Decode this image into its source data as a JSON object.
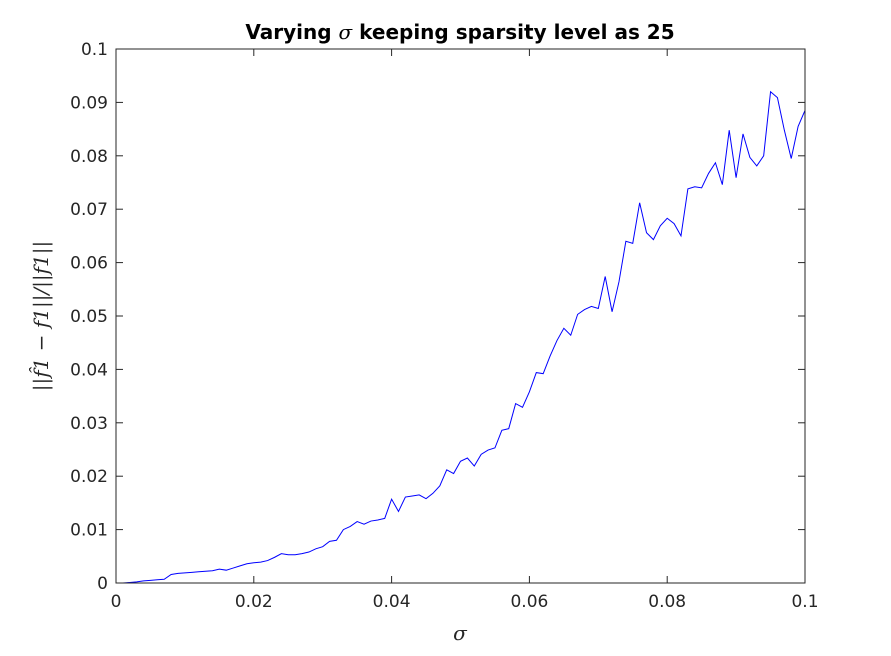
{
  "chart_data": {
    "type": "line",
    "title_parts": [
      "Varying ",
      "σ",
      " keeping sparsity level as 25"
    ],
    "xlabel": "σ",
    "ylabel": "||f̂1 − f1||/||f1||",
    "xlim": [
      0,
      0.1
    ],
    "ylim": [
      0,
      0.1
    ],
    "xticks": [
      0,
      0.02,
      0.04,
      0.06,
      0.08,
      0.1
    ],
    "xtick_labels": [
      "0",
      "0.02",
      "0.04",
      "0.06",
      "0.08",
      "0.1"
    ],
    "yticks": [
      0,
      0.01,
      0.02,
      0.03,
      0.04,
      0.05,
      0.06,
      0.07,
      0.08,
      0.09,
      0.1
    ],
    "ytick_labels": [
      "0",
      "0.01",
      "0.02",
      "0.03",
      "0.04",
      "0.05",
      "0.06",
      "0.07",
      "0.08",
      "0.09",
      "0.1"
    ],
    "grid": false,
    "series": [
      {
        "color": "#0000ff",
        "x": [
          0.001,
          0.002,
          0.003,
          0.004,
          0.005,
          0.006,
          0.007,
          0.008,
          0.009,
          0.01,
          0.011,
          0.012,
          0.013,
          0.014,
          0.015,
          0.016,
          0.017,
          0.018,
          0.019,
          0.02,
          0.021,
          0.022,
          0.023,
          0.024,
          0.025,
          0.026,
          0.027,
          0.028,
          0.029,
          0.03,
          0.031,
          0.032,
          0.033,
          0.034,
          0.035,
          0.036,
          0.037,
          0.038,
          0.039,
          0.04,
          0.041,
          0.042,
          0.043,
          0.044,
          0.045,
          0.046,
          0.047,
          0.048,
          0.049,
          0.05,
          0.051,
          0.052,
          0.053,
          0.054,
          0.055,
          0.056,
          0.057,
          0.058,
          0.059,
          0.06,
          0.061,
          0.062,
          0.063,
          0.064,
          0.065,
          0.066,
          0.067,
          0.068,
          0.069,
          0.07,
          0.071,
          0.072,
          0.073,
          0.074,
          0.075,
          0.076,
          0.077,
          0.078,
          0.079,
          0.08,
          0.081,
          0.082,
          0.083,
          0.084,
          0.085,
          0.086,
          0.087,
          0.088,
          0.089,
          0.09,
          0.091,
          0.092,
          0.093,
          0.094,
          0.095,
          0.096,
          0.097,
          0.098,
          0.099,
          0.1
        ],
        "y": [
          0.0,
          0.0001,
          0.0002,
          0.0004,
          0.0005,
          0.0006,
          0.0007,
          0.0016,
          0.0018,
          0.0019,
          0.002,
          0.0021,
          0.0022,
          0.0023,
          0.0026,
          0.0024,
          0.0028,
          0.0032,
          0.0036,
          0.0038,
          0.0039,
          0.0042,
          0.0048,
          0.0055,
          0.0053,
          0.0053,
          0.0055,
          0.0058,
          0.0064,
          0.0068,
          0.0078,
          0.008,
          0.01,
          0.0106,
          0.0115,
          0.011,
          0.0116,
          0.0118,
          0.0121,
          0.0157,
          0.0134,
          0.0161,
          0.0163,
          0.0165,
          0.0158,
          0.0168,
          0.0182,
          0.0212,
          0.0205,
          0.0228,
          0.0234,
          0.0219,
          0.0241,
          0.0249,
          0.0253,
          0.0286,
          0.0289,
          0.0336,
          0.0329,
          0.0358,
          0.0394,
          0.0392,
          0.0425,
          0.0454,
          0.0477,
          0.0464,
          0.0503,
          0.0512,
          0.0518,
          0.0514,
          0.0574,
          0.0508,
          0.0564,
          0.064,
          0.0636,
          0.0712,
          0.0656,
          0.0643,
          0.0669,
          0.0683,
          0.0673,
          0.065,
          0.0738,
          0.0742,
          0.074,
          0.0767,
          0.0787,
          0.0746,
          0.0848,
          0.0759,
          0.0841,
          0.0797,
          0.0781,
          0.08,
          0.092,
          0.0909,
          0.0848,
          0.0795,
          0.0855,
          0.0885
        ]
      }
    ]
  }
}
